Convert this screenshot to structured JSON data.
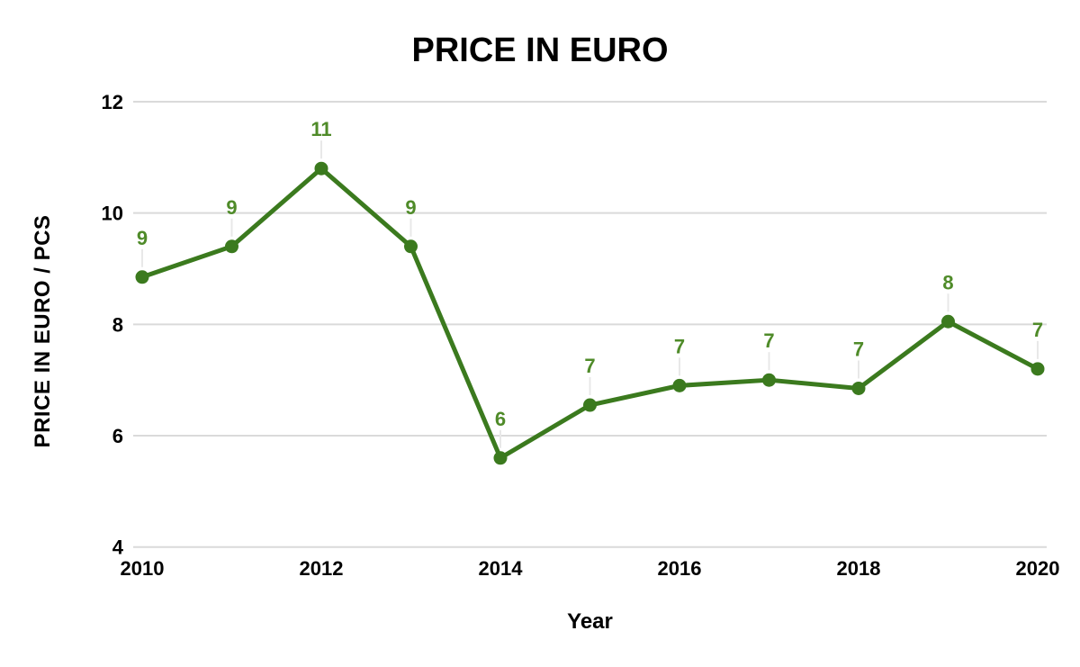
{
  "chart_data": {
    "type": "line",
    "title": "PRICE IN EURO",
    "xlabel": "Year",
    "ylabel": "PRICE IN EURO / PCS",
    "x": [
      2010,
      2011,
      2012,
      2013,
      2014,
      2015,
      2016,
      2017,
      2018,
      2019,
      2020
    ],
    "series": [
      {
        "values": [
          8.85,
          9.4,
          10.8,
          9.4,
          5.6,
          6.55,
          6.9,
          7.0,
          6.85,
          8.05,
          7.2
        ],
        "point_labels": [
          "9",
          "9",
          "11",
          "9",
          "6",
          "7",
          "7",
          "7",
          "7",
          "8",
          "7"
        ]
      }
    ],
    "x_ticks": [
      "2010",
      "2012",
      "2014",
      "2016",
      "2018",
      "2020"
    ],
    "y_ticks": [
      4,
      6,
      8,
      10,
      12
    ],
    "xlim": [
      2010,
      2020
    ],
    "ylim": [
      4,
      12
    ],
    "grid": "horizontal",
    "legend": "none",
    "marker": "circle",
    "colors": {
      "series": "#3b7a1e",
      "point_label": "#4f8b29",
      "gridline": "#dadada",
      "leader_line": "#e8e8e8",
      "axis_text": "#000000",
      "title_text": "#000000",
      "background": "#ffffff"
    }
  }
}
